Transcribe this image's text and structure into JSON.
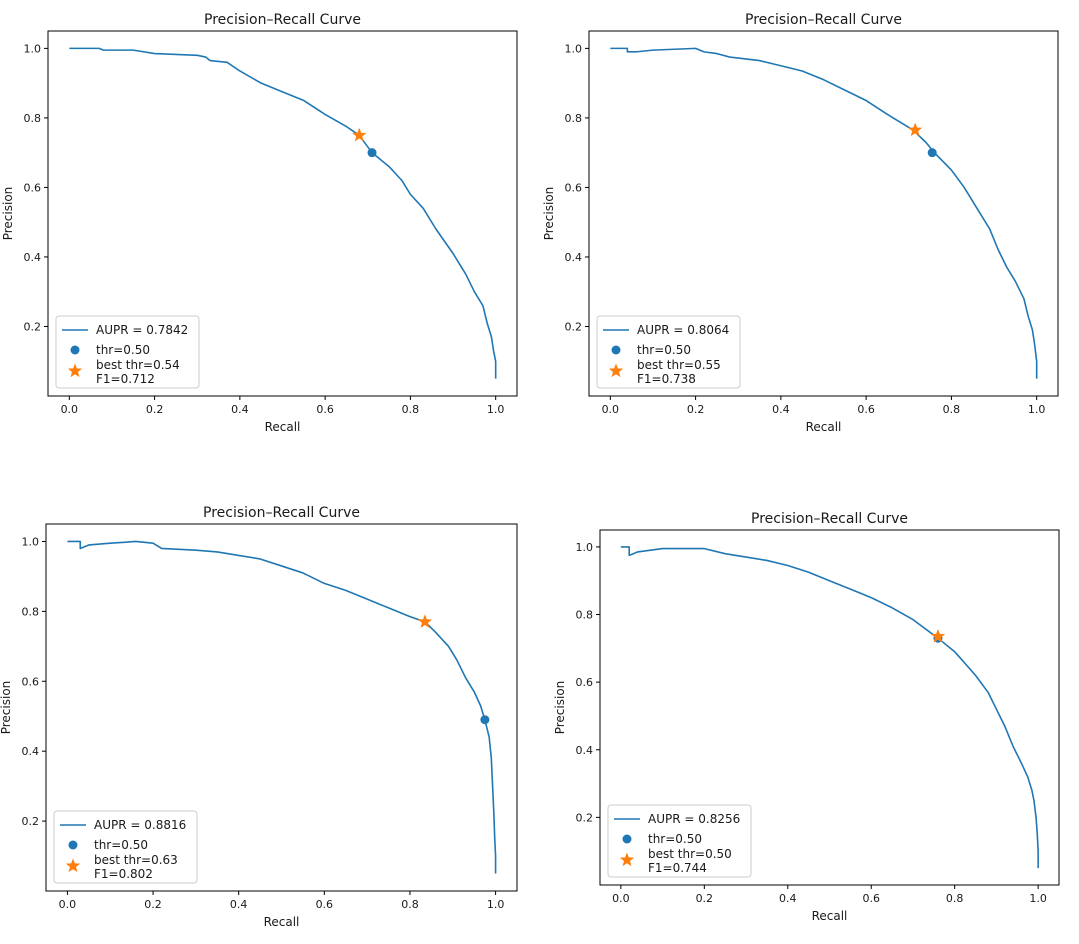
{
  "colors": {
    "curve": "#1f77b4",
    "threshold_point": "#1f77b4",
    "best_point": "#ff7f0e",
    "axes": "#000000"
  },
  "chart_data": [
    {
      "type": "line",
      "title": "Precision–Recall Curve",
      "xlabel": "Recall",
      "ylabel": "Precision",
      "xlim": [
        -0.05,
        1.05
      ],
      "ylim": [
        0.0,
        1.05
      ],
      "xticks": [
        0.0,
        0.2,
        0.4,
        0.6,
        0.8,
        1.0
      ],
      "xtick_labels": [
        "0.0",
        "0.2",
        "0.4",
        "0.6",
        "0.8",
        "1.0"
      ],
      "yticks": [
        0.2,
        0.4,
        0.6,
        0.8,
        1.0
      ],
      "ytick_labels": [
        "0.2",
        "0.4",
        "0.6",
        "0.8",
        "1.0"
      ],
      "legend_position": "lower-left",
      "legend": {
        "curve": "AUPR = 0.7842",
        "threshold": "thr=0.50",
        "best_line1": "best thr=0.54",
        "best_line2": "F1=0.712"
      },
      "series": [
        {
          "name": "AUPR = 0.7842",
          "points": [
            [
              0.0,
              1.0
            ],
            [
              0.07,
              1.0
            ],
            [
              0.08,
              0.995
            ],
            [
              0.15,
              0.995
            ],
            [
              0.2,
              0.985
            ],
            [
              0.3,
              0.98
            ],
            [
              0.32,
              0.975
            ],
            [
              0.33,
              0.965
            ],
            [
              0.37,
              0.96
            ],
            [
              0.4,
              0.935
            ],
            [
              0.45,
              0.9
            ],
            [
              0.5,
              0.875
            ],
            [
              0.55,
              0.85
            ],
            [
              0.6,
              0.81
            ],
            [
              0.65,
              0.775
            ],
            [
              0.68,
              0.75
            ],
            [
              0.71,
              0.7
            ],
            [
              0.75,
              0.66
            ],
            [
              0.78,
              0.62
            ],
            [
              0.8,
              0.58
            ],
            [
              0.83,
              0.54
            ],
            [
              0.86,
              0.48
            ],
            [
              0.9,
              0.41
            ],
            [
              0.93,
              0.35
            ],
            [
              0.95,
              0.3
            ],
            [
              0.97,
              0.26
            ],
            [
              0.98,
              0.21
            ],
            [
              0.99,
              0.17
            ],
            [
              0.995,
              0.13
            ],
            [
              1.0,
              0.1
            ],
            [
              1.0,
              0.05
            ]
          ]
        }
      ],
      "threshold_point": {
        "label": "thr=0.50",
        "x": 0.71,
        "y": 0.7
      },
      "best_point": {
        "label": "best thr=0.54",
        "x": 0.68,
        "y": 0.75,
        "f1": "F1=0.712"
      }
    },
    {
      "type": "line",
      "title": "Precision–Recall Curve",
      "xlabel": "Recall",
      "ylabel": "Precision",
      "xlim": [
        -0.05,
        1.05
      ],
      "ylim": [
        0.0,
        1.05
      ],
      "xticks": [
        0.0,
        0.2,
        0.4,
        0.6,
        0.8,
        1.0
      ],
      "xtick_labels": [
        "0.0",
        "0.2",
        "0.4",
        "0.6",
        "0.8",
        "1.0"
      ],
      "yticks": [
        0.2,
        0.4,
        0.6,
        0.8,
        1.0
      ],
      "ytick_labels": [
        "0.2",
        "0.4",
        "0.6",
        "0.8",
        "1.0"
      ],
      "legend_position": "lower-left",
      "legend": {
        "curve": "AUPR = 0.8064",
        "threshold": "thr=0.50",
        "best_line1": "best thr=0.55",
        "best_line2": "F1=0.738"
      },
      "series": [
        {
          "name": "AUPR = 0.8064",
          "points": [
            [
              0.0,
              1.0
            ],
            [
              0.04,
              1.0
            ],
            [
              0.04,
              0.99
            ],
            [
              0.06,
              0.99
            ],
            [
              0.1,
              0.995
            ],
            [
              0.2,
              1.0
            ],
            [
              0.22,
              0.99
            ],
            [
              0.25,
              0.985
            ],
            [
              0.28,
              0.975
            ],
            [
              0.35,
              0.965
            ],
            [
              0.4,
              0.95
            ],
            [
              0.45,
              0.935
            ],
            [
              0.5,
              0.91
            ],
            [
              0.55,
              0.88
            ],
            [
              0.6,
              0.85
            ],
            [
              0.65,
              0.81
            ],
            [
              0.69,
              0.78
            ],
            [
              0.71,
              0.765
            ],
            [
              0.74,
              0.73
            ],
            [
              0.76,
              0.7
            ],
            [
              0.8,
              0.65
            ],
            [
              0.83,
              0.6
            ],
            [
              0.86,
              0.54
            ],
            [
              0.89,
              0.48
            ],
            [
              0.91,
              0.42
            ],
            [
              0.93,
              0.37
            ],
            [
              0.95,
              0.33
            ],
            [
              0.97,
              0.28
            ],
            [
              0.98,
              0.23
            ],
            [
              0.99,
              0.19
            ],
            [
              0.995,
              0.15
            ],
            [
              1.0,
              0.1
            ],
            [
              1.0,
              0.05
            ]
          ]
        }
      ],
      "threshold_point": {
        "label": "thr=0.50",
        "x": 0.755,
        "y": 0.7
      },
      "best_point": {
        "label": "best thr=0.55",
        "x": 0.715,
        "y": 0.765,
        "f1": "F1=0.738"
      }
    },
    {
      "type": "line",
      "title": "Precision–Recall Curve",
      "xlabel": "Recall",
      "ylabel": "Precision",
      "xlim": [
        -0.05,
        1.05
      ],
      "ylim": [
        0.0,
        1.05
      ],
      "xticks": [
        0.0,
        0.2,
        0.4,
        0.6,
        0.8,
        1.0
      ],
      "xtick_labels": [
        "0.0",
        "0.2",
        "0.4",
        "0.6",
        "0.8",
        "1.0"
      ],
      "yticks": [
        0.2,
        0.4,
        0.6,
        0.8,
        1.0
      ],
      "ytick_labels": [
        "0.2",
        "0.4",
        "0.6",
        "0.8",
        "1.0"
      ],
      "legend_position": "lower-left",
      "legend": {
        "curve": "AUPR = 0.8816",
        "threshold": "thr=0.50",
        "best_line1": "best thr=0.63",
        "best_line2": "F1=0.802"
      },
      "series": [
        {
          "name": "AUPR = 0.8816",
          "points": [
            [
              0.0,
              1.0
            ],
            [
              0.03,
              1.0
            ],
            [
              0.03,
              0.98
            ],
            [
              0.05,
              0.99
            ],
            [
              0.1,
              0.995
            ],
            [
              0.16,
              1.0
            ],
            [
              0.2,
              0.995
            ],
            [
              0.22,
              0.98
            ],
            [
              0.3,
              0.975
            ],
            [
              0.35,
              0.97
            ],
            [
              0.4,
              0.96
            ],
            [
              0.45,
              0.95
            ],
            [
              0.5,
              0.93
            ],
            [
              0.55,
              0.91
            ],
            [
              0.6,
              0.88
            ],
            [
              0.65,
              0.86
            ],
            [
              0.7,
              0.835
            ],
            [
              0.75,
              0.81
            ],
            [
              0.8,
              0.785
            ],
            [
              0.835,
              0.77
            ],
            [
              0.86,
              0.74
            ],
            [
              0.89,
              0.7
            ],
            [
              0.91,
              0.66
            ],
            [
              0.93,
              0.61
            ],
            [
              0.95,
              0.57
            ],
            [
              0.965,
              0.53
            ],
            [
              0.975,
              0.49
            ],
            [
              0.985,
              0.44
            ],
            [
              0.99,
              0.38
            ],
            [
              0.993,
              0.3
            ],
            [
              0.996,
              0.22
            ],
            [
              0.998,
              0.15
            ],
            [
              1.0,
              0.1
            ],
            [
              1.0,
              0.05
            ]
          ]
        }
      ],
      "threshold_point": {
        "label": "thr=0.50",
        "x": 0.975,
        "y": 0.49
      },
      "best_point": {
        "label": "best thr=0.63",
        "x": 0.835,
        "y": 0.77,
        "f1": "F1=0.802"
      }
    },
    {
      "type": "line",
      "title": "Precision–Recall Curve",
      "xlabel": "Recall",
      "ylabel": "Precision",
      "xlim": [
        -0.05,
        1.05
      ],
      "ylim": [
        0.0,
        1.05
      ],
      "xticks": [
        0.0,
        0.2,
        0.4,
        0.6,
        0.8,
        1.0
      ],
      "xtick_labels": [
        "0.0",
        "0.2",
        "0.4",
        "0.6",
        "0.8",
        "1.0"
      ],
      "yticks": [
        0.2,
        0.4,
        0.6,
        0.8,
        1.0
      ],
      "ytick_labels": [
        "0.2",
        "0.4",
        "0.6",
        "0.8",
        "1.0"
      ],
      "legend_position": "lower-left",
      "legend": {
        "curve": "AUPR = 0.8256",
        "threshold": "thr=0.50",
        "best_line1": "best thr=0.50",
        "best_line2": "F1=0.744"
      },
      "series": [
        {
          "name": "AUPR = 0.8256",
          "points": [
            [
              0.0,
              1.0
            ],
            [
              0.02,
              1.0
            ],
            [
              0.02,
              0.975
            ],
            [
              0.04,
              0.985
            ],
            [
              0.1,
              0.995
            ],
            [
              0.2,
              0.995
            ],
            [
              0.25,
              0.98
            ],
            [
              0.3,
              0.97
            ],
            [
              0.35,
              0.96
            ],
            [
              0.4,
              0.945
            ],
            [
              0.45,
              0.925
            ],
            [
              0.5,
              0.9
            ],
            [
              0.55,
              0.875
            ],
            [
              0.6,
              0.85
            ],
            [
              0.65,
              0.82
            ],
            [
              0.7,
              0.785
            ],
            [
              0.76,
              0.73
            ],
            [
              0.8,
              0.69
            ],
            [
              0.85,
              0.62
            ],
            [
              0.88,
              0.57
            ],
            [
              0.9,
              0.52
            ],
            [
              0.92,
              0.47
            ],
            [
              0.94,
              0.41
            ],
            [
              0.96,
              0.36
            ],
            [
              0.975,
              0.32
            ],
            [
              0.985,
              0.28
            ],
            [
              0.99,
              0.25
            ],
            [
              0.995,
              0.2
            ],
            [
              0.998,
              0.15
            ],
            [
              1.0,
              0.1
            ],
            [
              1.0,
              0.05
            ]
          ]
        }
      ],
      "threshold_point": {
        "label": "thr=0.50",
        "x": 0.76,
        "y": 0.73
      },
      "best_point": {
        "label": "best thr=0.50",
        "x": 0.76,
        "y": 0.735,
        "f1": "F1=0.744"
      }
    }
  ]
}
